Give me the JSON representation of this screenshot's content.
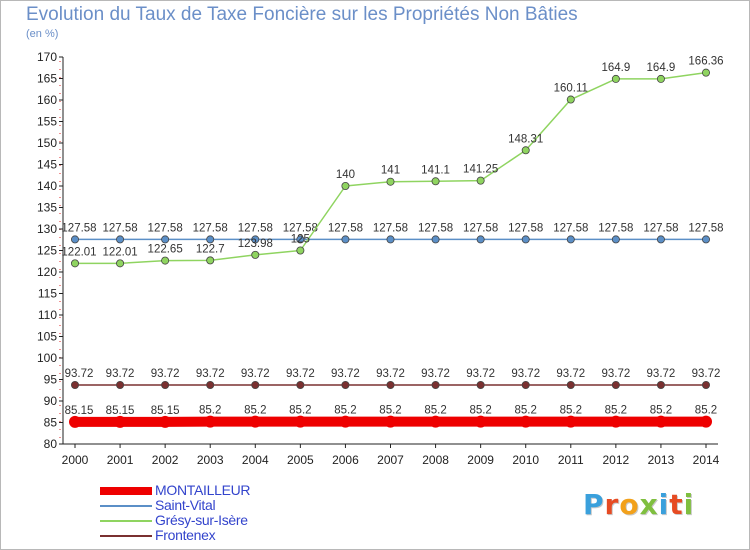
{
  "header": {
    "title": "Evolution du Taux de Taxe Foncière sur les Propriétés Non Bâties",
    "unit": "(en %)"
  },
  "logo": {
    "text": "Proxiti",
    "letters": [
      {
        "ch": "P",
        "color": "#3aa0dc"
      },
      {
        "ch": "r",
        "color": "#e64b23"
      },
      {
        "ch": "o",
        "color": "#f2a11b"
      },
      {
        "ch": "x",
        "color": "#7fbf3f"
      },
      {
        "ch": "i",
        "color": "#3aa0dc"
      },
      {
        "ch": "t",
        "color": "#e64b23"
      },
      {
        "ch": "i",
        "color": "#7fbf3f"
      }
    ]
  },
  "chart_data": {
    "type": "line",
    "title": "Evolution du Taux de Taxe Foncière sur les Propriétés Non Bâties",
    "ylabel": "(en %)",
    "xlabel": "",
    "ylim": [
      80,
      170
    ],
    "yticks": [
      80,
      85,
      90,
      95,
      100,
      105,
      110,
      115,
      120,
      125,
      130,
      135,
      140,
      145,
      150,
      155,
      160,
      165,
      170
    ],
    "grid": false,
    "legend_position": "bottom-left",
    "categories": [
      "2000",
      "2001",
      "2002",
      "2003",
      "2004",
      "2005",
      "2006",
      "2007",
      "2008",
      "2009",
      "2010",
      "2011",
      "2012",
      "2013",
      "2014"
    ],
    "series": [
      {
        "name": "MONTAILLEUR",
        "color": "#ee0000",
        "values": [
          85.15,
          85.15,
          85.15,
          85.2,
          85.2,
          85.2,
          85.2,
          85.2,
          85.2,
          85.2,
          85.2,
          85.2,
          85.2,
          85.2,
          85.2
        ],
        "labels": [
          "85.15",
          "85.15",
          "85.15",
          "85.2",
          "85.2",
          "85.2",
          "85.2",
          "85.2",
          "85.2",
          "85.2",
          "85.2",
          "85.2",
          "85.2",
          "85.2",
          "85.2"
        ]
      },
      {
        "name": "Saint-Vital",
        "color": "#5b8fc7",
        "values": [
          127.58,
          127.58,
          127.58,
          127.58,
          127.58,
          127.58,
          127.58,
          127.58,
          127.58,
          127.58,
          127.58,
          127.58,
          127.58,
          127.58,
          127.58
        ],
        "labels": [
          "127.58",
          "127.58",
          "127.58",
          "127.58",
          "127.58",
          "127.58",
          "127.58",
          "127.58",
          "127.58",
          "127.58",
          "127.58",
          "127.58",
          "127.58",
          "127.58",
          "127.58"
        ]
      },
      {
        "name": "Grésy-sur-Isère",
        "color": "#8fd460",
        "values": [
          122.01,
          122.01,
          122.65,
          122.7,
          123.98,
          125,
          140,
          141,
          141.1,
          141.25,
          148.31,
          160.11,
          164.9,
          164.9,
          166.36
        ],
        "labels": [
          "122.01",
          "122.01",
          "122.65",
          "122.7",
          "123.98",
          "125",
          "140",
          "141",
          "141.1",
          "141.25",
          "148.31",
          "160.11",
          "164.9",
          "164.9",
          "166.36"
        ]
      },
      {
        "name": "Frontenex",
        "color": "#7a3030",
        "values": [
          93.72,
          93.72,
          93.72,
          93.72,
          93.72,
          93.72,
          93.72,
          93.72,
          93.72,
          93.72,
          93.72,
          93.72,
          93.72,
          93.72,
          93.72
        ],
        "labels": [
          "93.72",
          "93.72",
          "93.72",
          "93.72",
          "93.72",
          "93.72",
          "93.72",
          "93.72",
          "93.72",
          "93.72",
          "93.72",
          "93.72",
          "93.72",
          "93.72",
          "93.72"
        ]
      }
    ]
  }
}
